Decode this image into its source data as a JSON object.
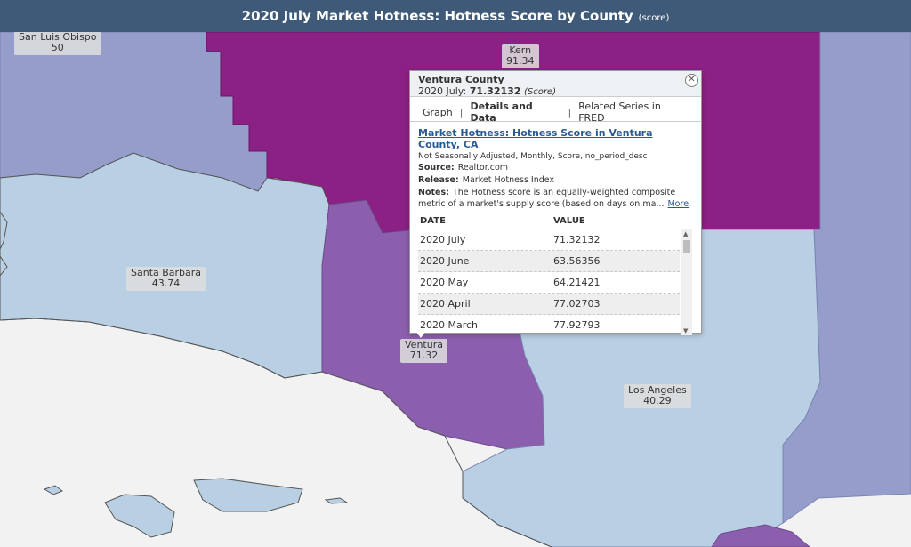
{
  "title": "2020 July Market Hotness: Hotness Score by County",
  "title_unit": "(score)",
  "colors": {
    "ocean": "#f2f2f2",
    "light_blue": "#b9d0e4",
    "periwinkle": "#959dca",
    "violet": "#8c5fae",
    "magenta": "#8b2184",
    "titlebar": "#3e5a78"
  },
  "map_labels": [
    {
      "name": "San Luis Obispo",
      "value": "50"
    },
    {
      "name": "Kern",
      "value": "91.34"
    },
    {
      "name": "Santa Barbara",
      "value": "43.74"
    },
    {
      "name": "Ventura",
      "value": "71.32"
    },
    {
      "name": "Los Angeles",
      "value": "40.29"
    }
  ],
  "popup": {
    "county": "Ventura County",
    "date_label": "2020 July:",
    "value": "71.32132",
    "unit": "(Score)",
    "close_icon": "close-icon",
    "tabs": [
      "Graph",
      "Details and Data",
      "Related Series in FRED"
    ],
    "active_tab": "Details and Data",
    "series_title": "Market Hotness: Hotness Score in Ventura County, CA",
    "series_meta": "Not Seasonally Adjusted, Monthly, Score, no_period_desc",
    "source_label": "Source:",
    "source": "Realtor.com",
    "release_label": "Release:",
    "release": "Market Hotness Index",
    "notes_label": "Notes:",
    "notes_line1": "The Hotness score is an equally-weighted composite",
    "notes_line2": "metric of a market's supply score (based on days on ma...",
    "more_label": "More",
    "col_date": "DATE",
    "col_value": "VALUE",
    "rows": [
      {
        "date": "2020 July",
        "value": "71.32132"
      },
      {
        "date": "2020 June",
        "value": "63.56356"
      },
      {
        "date": "2020 May",
        "value": "64.21421"
      },
      {
        "date": "2020 April",
        "value": "77.02703"
      },
      {
        "date": "2020 March",
        "value": "77.92793"
      }
    ]
  }
}
